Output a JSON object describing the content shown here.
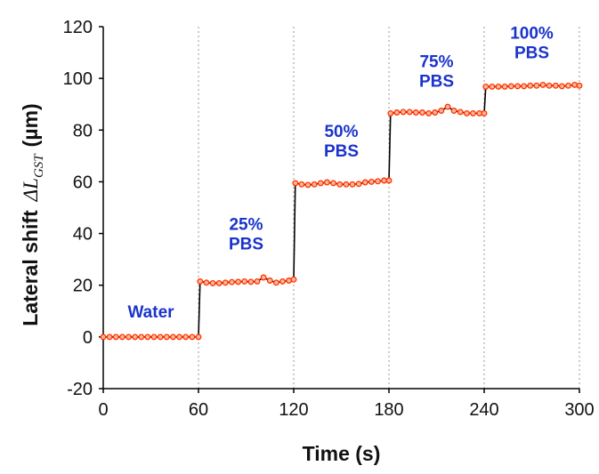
{
  "chart_data": {
    "type": "line",
    "xlabel": "Time (s)",
    "ylabel_prefix": "Lateral shift",
    "ylabel_symbol": "ΔL",
    "ylabel_subscript": "GST",
    "ylabel_unit": "(µm)",
    "xlim": [
      0,
      300
    ],
    "ylim": [
      -20,
      120
    ],
    "x_ticks": [
      0,
      60,
      120,
      180,
      240,
      300
    ],
    "y_ticks": [
      -20,
      0,
      20,
      40,
      60,
      80,
      100,
      120
    ],
    "grid": "vertical dotted lines at 60, 120, 180, 240, 300",
    "colors": {
      "line": "#000000",
      "marker_edge": "#ff3300",
      "marker_fill": "#ffb899",
      "annotation": "#1a33cc",
      "grid": "#999999"
    },
    "series": [
      {
        "x": [
          0,
          4,
          8,
          12,
          16,
          20,
          24,
          28,
          32,
          36,
          40,
          44,
          48,
          52,
          56,
          60,
          61,
          65,
          69,
          73,
          77,
          81,
          85,
          89,
          93,
          97,
          101,
          105,
          109,
          113,
          117,
          120,
          121,
          125,
          129,
          133,
          137,
          141,
          145,
          149,
          153,
          157,
          161,
          165,
          169,
          173,
          177,
          180,
          181,
          185,
          189,
          193,
          197,
          201,
          205,
          209,
          213,
          217,
          221,
          225,
          229,
          233,
          237,
          240,
          241,
          245,
          249,
          253,
          257,
          261,
          265,
          269,
          273,
          277,
          281,
          285,
          289,
          293,
          297,
          300
        ],
        "y": [
          0,
          0,
          0,
          0,
          0,
          0,
          0,
          0,
          0,
          0,
          0,
          0,
          0,
          0,
          0,
          0,
          21.5,
          21.0,
          20.8,
          20.8,
          21.0,
          21.2,
          21.3,
          21.5,
          21.3,
          21.5,
          23.0,
          21.8,
          21.0,
          21.5,
          21.8,
          22.2,
          59.5,
          59.0,
          58.8,
          59.0,
          59.5,
          59.8,
          59.5,
          59.0,
          59.0,
          59.0,
          59.2,
          59.8,
          60.0,
          60.2,
          60.5,
          60.5,
          86.5,
          86.8,
          87.0,
          87.0,
          86.8,
          86.8,
          86.5,
          86.8,
          87.5,
          89.0,
          87.5,
          87.0,
          86.5,
          86.5,
          86.5,
          86.5,
          96.8,
          96.8,
          96.8,
          96.8,
          97.0,
          97.0,
          97.0,
          97.2,
          97.2,
          97.5,
          97.2,
          97.2,
          97.0,
          97.2,
          97.5,
          97.2
        ]
      }
    ],
    "annotations": [
      {
        "lines": [
          "Water"
        ],
        "x": 30,
        "y": 10
      },
      {
        "lines": [
          "25%",
          "PBS"
        ],
        "x": 90,
        "y": 40
      },
      {
        "lines": [
          "50%",
          "PBS"
        ],
        "x": 150,
        "y": 76
      },
      {
        "lines": [
          "75%",
          "PBS"
        ],
        "x": 210,
        "y": 103
      },
      {
        "lines": [
          "100%",
          "PBS"
        ],
        "x": 270,
        "y": 114
      }
    ]
  }
}
